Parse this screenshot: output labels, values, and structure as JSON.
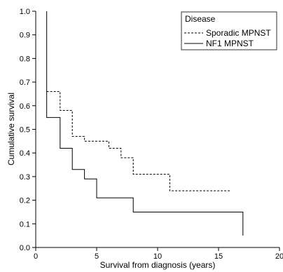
{
  "chart_data": {
    "type": "line",
    "subtype": "step",
    "xlabel": "Survival from diagnosis (years)",
    "ylabel": "Cumulative survival",
    "xlim": [
      0,
      20
    ],
    "ylim": [
      0.0,
      1.0
    ],
    "x_ticks": [
      "0",
      "5",
      "10",
      "15",
      "20"
    ],
    "y_ticks": [
      "0.0",
      "0.1",
      "0.2",
      "0.3",
      "0.4",
      "0.5",
      "0.6",
      "0.7",
      "0.8",
      "0.9",
      "1.0"
    ],
    "grid": false,
    "legend": {
      "title": "Disease",
      "position": "top-right"
    },
    "series": [
      {
        "name": "Sporadic MPNST",
        "line_style": "dashed",
        "color": "#000000",
        "points": [
          {
            "x": 0.9,
            "y": 0.66
          },
          {
            "x": 2.0,
            "y": 0.58
          },
          {
            "x": 3.0,
            "y": 0.47
          },
          {
            "x": 4.0,
            "y": 0.45
          },
          {
            "x": 6.0,
            "y": 0.42
          },
          {
            "x": 7.0,
            "y": 0.38
          },
          {
            "x": 8.0,
            "y": 0.31
          },
          {
            "x": 11.0,
            "y": 0.24
          },
          {
            "x": 16.0,
            "y": 0.24
          }
        ]
      },
      {
        "name": "NF1 MPNST",
        "line_style": "solid",
        "color": "#000000",
        "points": [
          {
            "x": 0.9,
            "y": 1.0
          },
          {
            "x": 0.9,
            "y": 0.55
          },
          {
            "x": 2.0,
            "y": 0.42
          },
          {
            "x": 3.0,
            "y": 0.33
          },
          {
            "x": 4.0,
            "y": 0.29
          },
          {
            "x": 5.0,
            "y": 0.21
          },
          {
            "x": 8.0,
            "y": 0.15
          },
          {
            "x": 17.0,
            "y": 0.15
          },
          {
            "x": 17.0,
            "y": 0.05
          }
        ]
      }
    ]
  }
}
